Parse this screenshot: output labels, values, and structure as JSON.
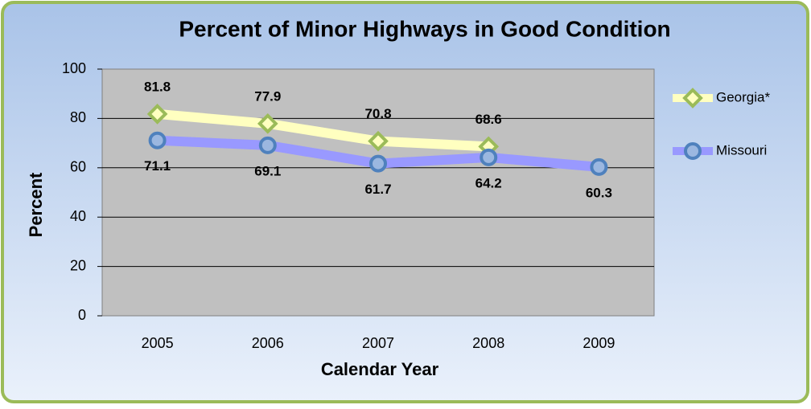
{
  "chart_data": {
    "type": "line",
    "title": "Percent of Minor Highways in Good Condition",
    "x_label": "Calendar Year",
    "y_label": "Percent",
    "categories": [
      "2005",
      "2006",
      "2007",
      "2008",
      "2009"
    ],
    "series": [
      {
        "name": "Georgia*",
        "color": "#ffffc0",
        "marker_color": "#9bbb59",
        "marker": "diamond",
        "label_side": "above",
        "values": [
          81.8,
          77.9,
          70.8,
          68.6,
          null
        ]
      },
      {
        "name": "Missouri",
        "color": "#9999ff",
        "marker_color": "#4f81bd",
        "marker": "circle",
        "label_side": "below",
        "values": [
          71.1,
          69.1,
          61.7,
          64.2,
          60.3
        ]
      }
    ],
    "ylim": [
      0,
      100
    ],
    "yticks": [
      0,
      20,
      40,
      60,
      80,
      100
    ],
    "grid": true,
    "legend": "right"
  }
}
